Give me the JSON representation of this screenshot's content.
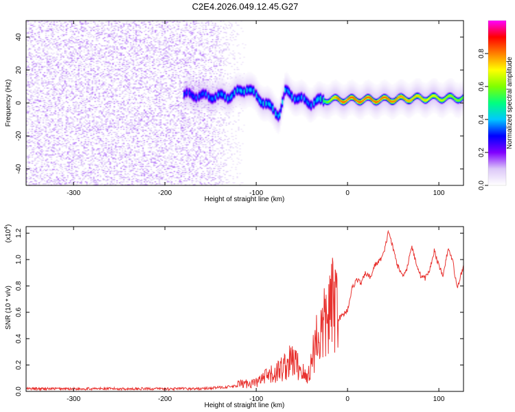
{
  "chart_data": [
    {
      "type": "heatmap",
      "title": "C2E4.2026.049.12.45.G27",
      "xlabel": "Height of straight line (km)",
      "ylabel": "Frequency (Hz)",
      "xlim": [
        -352,
        127
      ],
      "ylim": [
        -50,
        50
      ],
      "xticks": [
        -300,
        -200,
        -100,
        0,
        100
      ],
      "xtick_labels": [
        "-300",
        "-200",
        "-100",
        "0",
        "100"
      ],
      "yticks": [
        -40,
        -20,
        0,
        20,
        40
      ],
      "ytick_labels": [
        "-40",
        "-20",
        "0",
        "20",
        "40"
      ],
      "colorbar": {
        "label": "Normalized spectral amplitude",
        "range": [
          0,
          1
        ],
        "ticks": [
          0.0,
          0.2,
          0.4,
          0.6,
          0.8
        ],
        "tick_labels": [
          "0.0",
          "0.2",
          "0.4",
          "0.6",
          "0.8"
        ],
        "colormap": [
          "#ffffff",
          "#dcc8f8",
          "#8000ff",
          "#0000ff",
          "#00c8ff",
          "#00ff80",
          "#80ff00",
          "#ffff00",
          "#ff8000",
          "#ff0000",
          "#ff00ff"
        ]
      },
      "features": {
        "noise_region_x": [
          -352,
          -150
        ],
        "noise_amplitude": 0.12,
        "track": [
          {
            "x": -175,
            "y": 5
          },
          {
            "x": -150,
            "y": 4
          },
          {
            "x": -130,
            "y": 4
          },
          {
            "x": -110,
            "y": 9
          },
          {
            "x": -95,
            "y": 2
          },
          {
            "x": -75,
            "y": -7
          },
          {
            "x": -68,
            "y": 7
          },
          {
            "x": -55,
            "y": 3
          },
          {
            "x": -40,
            "y": 0
          },
          {
            "x": -25,
            "y": 2
          },
          {
            "x": 0,
            "y": 2
          },
          {
            "x": 40,
            "y": 2
          },
          {
            "x": 80,
            "y": 3
          },
          {
            "x": 127,
            "y": 3
          }
        ],
        "track_amplitude": [
          {
            "x": -175,
            "a": 0.35
          },
          {
            "x": -120,
            "a": 0.45
          },
          {
            "x": -80,
            "a": 0.45
          },
          {
            "x": -40,
            "a": 0.4
          },
          {
            "x": -25,
            "a": 0.55
          },
          {
            "x": -10,
            "a": 0.85
          },
          {
            "x": 40,
            "a": 0.85
          },
          {
            "x": 80,
            "a": 0.75
          },
          {
            "x": 127,
            "a": 0.6
          }
        ]
      }
    },
    {
      "type": "line",
      "xlabel": "Height of straight line (km)",
      "ylabel": "SNR (10 * v/v)",
      "y_multiplier": "(x10",
      "y_multiplier_exp": "4",
      "y_multiplier_close": ")",
      "xlim": [
        -352,
        127
      ],
      "ylim": [
        0,
        1.25
      ],
      "xticks": [
        -300,
        -200,
        -100,
        0,
        100
      ],
      "xtick_labels": [
        "-300",
        "-200",
        "-100",
        "0",
        "100"
      ],
      "yticks": [
        0.0,
        0.2,
        0.4,
        0.6,
        0.8,
        1.0,
        1.2
      ],
      "ytick_labels": [
        "0.0",
        "0.2",
        "0.4",
        "0.6",
        "0.8",
        "1.0",
        "1.2"
      ],
      "color": "#e8322f",
      "x": [
        -352,
        -300,
        -250,
        -200,
        -160,
        -140,
        -120,
        -100,
        -90,
        -80,
        -70,
        -60,
        -50,
        -45,
        -40,
        -35,
        -30,
        -25,
        -20,
        -15,
        -10,
        -5,
        0,
        5,
        10,
        15,
        20,
        25,
        30,
        35,
        40,
        45,
        50,
        55,
        60,
        65,
        70,
        75,
        80,
        85,
        90,
        95,
        100,
        105,
        110,
        115,
        120,
        127
      ],
      "y": [
        0.02,
        0.02,
        0.02,
        0.02,
        0.02,
        0.03,
        0.04,
        0.05,
        0.08,
        0.1,
        0.14,
        0.18,
        0.12,
        0.07,
        0.15,
        0.3,
        0.32,
        0.38,
        0.45,
        0.5,
        0.55,
        0.58,
        0.62,
        0.78,
        0.85,
        0.82,
        0.9,
        0.86,
        0.96,
        0.99,
        1.05,
        1.22,
        1.08,
        0.95,
        0.88,
        0.93,
        1.1,
        0.98,
        0.88,
        0.86,
        0.92,
        1.07,
        0.95,
        0.88,
        1.08,
        1.0,
        0.78,
        0.95
      ]
    }
  ]
}
